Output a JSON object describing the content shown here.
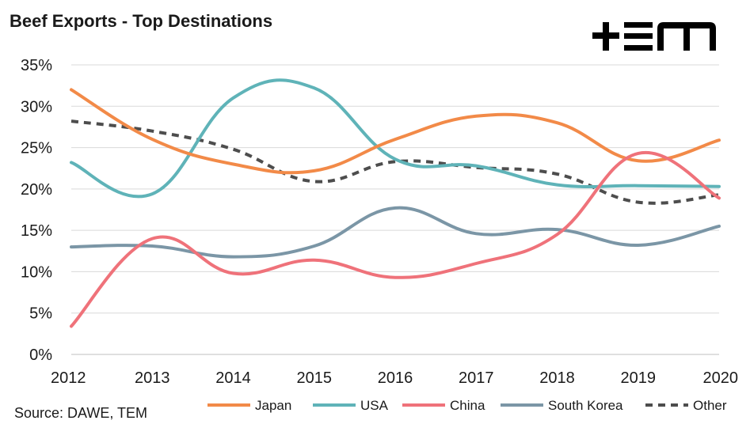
{
  "title": "Beef Exports - Top Destinations",
  "source": "Source: DAWE, TEM",
  "logo_text": "+EM",
  "chart_data": {
    "type": "line",
    "title": "Beef Exports - Top Destinations",
    "xlabel": "",
    "ylabel": "",
    "x": [
      "2012",
      "2013",
      "2014",
      "2015",
      "2016",
      "2017",
      "2018",
      "2019",
      "2020"
    ],
    "ylim": [
      0,
      35
    ],
    "yticks": [
      0,
      5,
      10,
      15,
      20,
      25,
      30,
      35
    ],
    "ytick_labels": [
      "0%",
      "5%",
      "10%",
      "15%",
      "20%",
      "25%",
      "30%",
      "35%"
    ],
    "grid": "horizontal",
    "legend_position": "bottom",
    "series": [
      {
        "name": "Japan",
        "color": "#f28a48",
        "dashed": false,
        "values": [
          32.0,
          26.0,
          23.0,
          22.2,
          26.0,
          28.8,
          28.0,
          23.4,
          25.9
        ]
      },
      {
        "name": "USA",
        "color": "#5fb3b8",
        "dashed": false,
        "values": [
          23.2,
          19.4,
          31.0,
          32.2,
          23.6,
          22.8,
          20.5,
          20.4,
          20.3
        ]
      },
      {
        "name": "China",
        "color": "#ef727a",
        "dashed": false,
        "values": [
          3.4,
          14.0,
          9.8,
          11.4,
          9.3,
          11.0,
          14.5,
          24.3,
          18.9
        ]
      },
      {
        "name": "South Korea",
        "color": "#7b96a6",
        "dashed": false,
        "values": [
          13.0,
          13.1,
          11.8,
          13.1,
          17.7,
          14.6,
          15.1,
          13.2,
          15.5
        ]
      },
      {
        "name": "Other",
        "color": "#4d4d4d",
        "dashed": true,
        "values": [
          28.2,
          27.0,
          24.8,
          20.9,
          23.3,
          22.6,
          21.8,
          18.4,
          19.3
        ]
      }
    ]
  }
}
